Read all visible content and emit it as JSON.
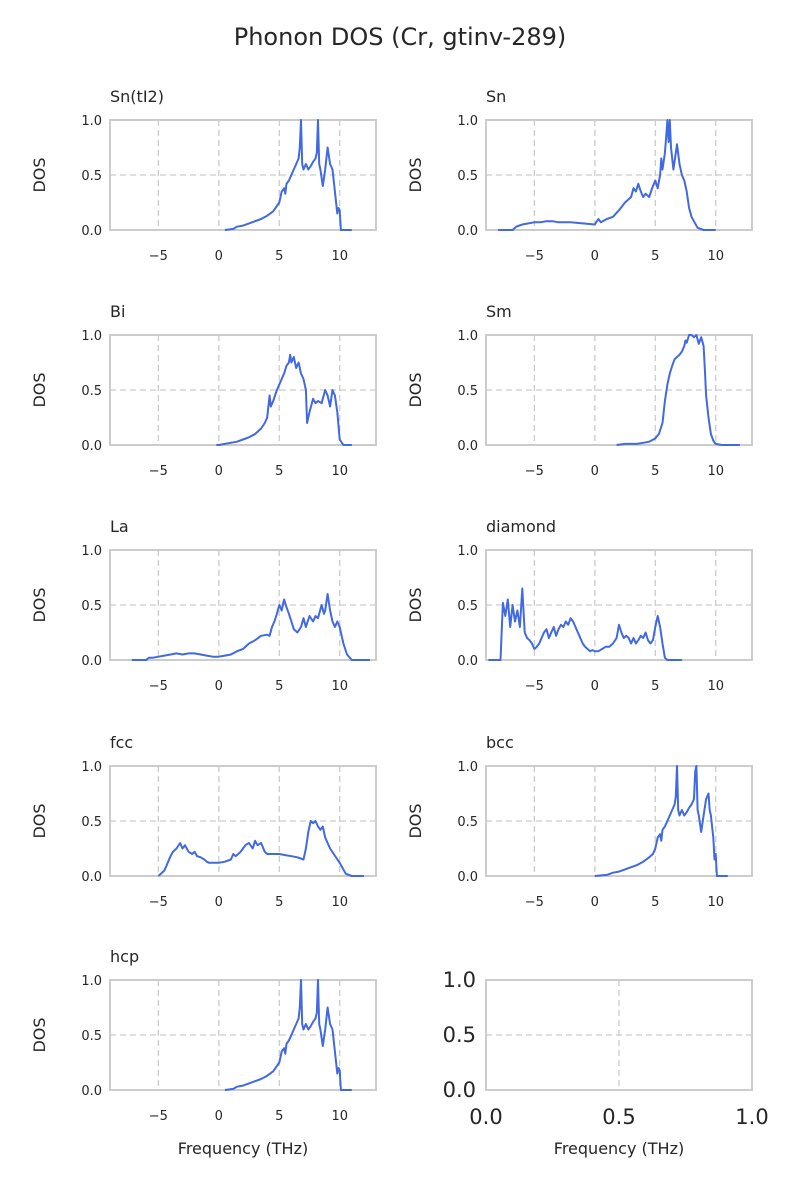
{
  "chart_data": {
    "title": "Phonon DOS (Cr, gtinv-289)",
    "color": "#4169e1",
    "panels": [
      {
        "type": "line",
        "title": "Sn(tI2)",
        "xlabel": "",
        "ylabel": "DOS",
        "xlim": [
          -9,
          13
        ],
        "ylim": [
          0,
          1
        ],
        "xticks": [
          -5,
          0,
          5,
          10
        ],
        "yticks": [
          0.0,
          0.5,
          1.0
        ],
        "grid": true,
        "x": [
          0.5,
          1.2,
          1.5,
          2.0,
          2.5,
          3.0,
          3.5,
          4.0,
          4.5,
          5.0,
          5.2,
          5.4,
          5.5,
          5.6,
          5.8,
          6.0,
          6.2,
          6.4,
          6.6,
          6.7,
          6.8,
          6.9,
          7.0,
          7.2,
          7.4,
          7.6,
          7.8,
          8.0,
          8.1,
          8.2,
          8.3,
          8.4,
          8.6,
          8.8,
          9.0,
          9.2,
          9.4,
          9.6,
          9.8,
          9.9,
          10.0,
          10.1,
          10.2,
          10.4,
          11.0
        ],
        "y": [
          0.0,
          0.01,
          0.03,
          0.04,
          0.06,
          0.08,
          0.1,
          0.13,
          0.17,
          0.25,
          0.35,
          0.38,
          0.33,
          0.42,
          0.45,
          0.5,
          0.55,
          0.6,
          0.65,
          0.75,
          1.0,
          0.6,
          0.55,
          0.6,
          0.55,
          0.58,
          0.62,
          0.65,
          0.7,
          1.0,
          0.6,
          0.55,
          0.4,
          0.55,
          0.75,
          0.6,
          0.55,
          0.35,
          0.15,
          0.2,
          0.18,
          0.0,
          0.0,
          0.0,
          0.0
        ]
      },
      {
        "type": "line",
        "title": "Sn",
        "xlabel": "",
        "ylabel": "DOS",
        "xlim": [
          -9,
          13
        ],
        "ylim": [
          0,
          1
        ],
        "xticks": [
          -5,
          0,
          5,
          10
        ],
        "yticks": [
          0.0,
          0.5,
          1.0
        ],
        "grid": true,
        "x": [
          -8.0,
          -6.8,
          -6.5,
          -6.0,
          -5.5,
          -5.0,
          -4.5,
          -4.0,
          -3.5,
          -3.0,
          -2.0,
          -1.0,
          0.0,
          0.3,
          0.5,
          1.0,
          1.5,
          2.0,
          2.5,
          3.0,
          3.2,
          3.4,
          3.6,
          3.8,
          4.0,
          4.2,
          4.5,
          4.8,
          5.0,
          5.2,
          5.4,
          5.5,
          5.6,
          5.8,
          5.9,
          6.0,
          6.1,
          6.2,
          6.3,
          6.5,
          6.7,
          6.8,
          7.0,
          7.2,
          7.4,
          7.6,
          7.8,
          8.0,
          8.5,
          9.0,
          10.0
        ],
        "y": [
          0.0,
          0.0,
          0.03,
          0.05,
          0.06,
          0.07,
          0.07,
          0.08,
          0.08,
          0.07,
          0.07,
          0.06,
          0.05,
          0.1,
          0.07,
          0.1,
          0.12,
          0.18,
          0.25,
          0.3,
          0.38,
          0.35,
          0.42,
          0.35,
          0.3,
          0.33,
          0.3,
          0.4,
          0.45,
          0.38,
          0.5,
          0.65,
          0.55,
          0.7,
          0.85,
          1.0,
          0.8,
          1.0,
          0.75,
          0.55,
          0.7,
          0.78,
          0.6,
          0.5,
          0.45,
          0.35,
          0.2,
          0.12,
          0.02,
          0.0,
          0.0
        ]
      },
      {
        "type": "line",
        "title": "Bi",
        "xlabel": "",
        "ylabel": "DOS",
        "xlim": [
          -9,
          13
        ],
        "ylim": [
          0,
          1
        ],
        "xticks": [
          -5,
          0,
          5,
          10
        ],
        "yticks": [
          0.0,
          0.5,
          1.0
        ],
        "grid": true,
        "x": [
          -0.2,
          0.0,
          0.5,
          1.0,
          1.5,
          2.0,
          2.5,
          3.0,
          3.5,
          3.8,
          4.0,
          4.2,
          4.3,
          4.5,
          4.8,
          5.0,
          5.2,
          5.4,
          5.6,
          5.8,
          5.9,
          6.0,
          6.2,
          6.4,
          6.6,
          6.8,
          7.0,
          7.2,
          7.3,
          7.5,
          7.8,
          8.0,
          8.2,
          8.5,
          8.8,
          9.0,
          9.2,
          9.4,
          9.6,
          9.8,
          10.0,
          10.3,
          11.0
        ],
        "y": [
          0.0,
          0.0,
          0.01,
          0.02,
          0.03,
          0.05,
          0.07,
          0.1,
          0.15,
          0.2,
          0.25,
          0.45,
          0.35,
          0.4,
          0.5,
          0.55,
          0.6,
          0.65,
          0.72,
          0.75,
          0.82,
          0.75,
          0.8,
          0.7,
          0.75,
          0.65,
          0.6,
          0.5,
          0.2,
          0.3,
          0.42,
          0.38,
          0.4,
          0.38,
          0.5,
          0.45,
          0.35,
          0.5,
          0.45,
          0.3,
          0.05,
          0.0,
          0.0
        ]
      },
      {
        "type": "line",
        "title": "Sm",
        "xlabel": "",
        "ylabel": "DOS",
        "xlim": [
          -9,
          13
        ],
        "ylim": [
          0,
          1
        ],
        "xticks": [
          -5,
          0,
          5,
          10
        ],
        "yticks": [
          0.0,
          0.5,
          1.0
        ],
        "grid": true,
        "x": [
          1.8,
          2.5,
          3.0,
          3.5,
          4.0,
          4.5,
          5.0,
          5.3,
          5.6,
          5.8,
          6.0,
          6.2,
          6.4,
          6.6,
          6.8,
          7.0,
          7.2,
          7.4,
          7.5,
          7.6,
          7.8,
          8.0,
          8.2,
          8.4,
          8.6,
          8.8,
          9.0,
          9.1,
          9.2,
          9.4,
          9.6,
          9.8,
          10.0,
          10.5,
          11.0,
          12.0
        ],
        "y": [
          0.0,
          0.01,
          0.01,
          0.01,
          0.02,
          0.03,
          0.06,
          0.1,
          0.2,
          0.4,
          0.55,
          0.65,
          0.72,
          0.78,
          0.8,
          0.82,
          0.85,
          0.9,
          0.95,
          0.93,
          1.0,
          1.0,
          0.98,
          1.0,
          0.92,
          0.98,
          0.9,
          0.7,
          0.45,
          0.25,
          0.1,
          0.04,
          0.01,
          0.0,
          0.0,
          0.0
        ]
      },
      {
        "type": "line",
        "title": "La",
        "xlabel": "",
        "ylabel": "DOS",
        "xlim": [
          -9,
          13
        ],
        "ylim": [
          0,
          1
        ],
        "xticks": [
          -5,
          0,
          5,
          10
        ],
        "yticks": [
          0.0,
          0.5,
          1.0
        ],
        "grid": true,
        "x": [
          -7.2,
          -6.0,
          -5.8,
          -5.5,
          -5.0,
          -4.5,
          -4.0,
          -3.5,
          -3.0,
          -2.5,
          -2.0,
          -1.5,
          -1.0,
          -0.5,
          0.0,
          0.5,
          1.0,
          1.5,
          2.0,
          2.5,
          3.0,
          3.5,
          4.0,
          4.2,
          4.4,
          4.6,
          4.8,
          5.0,
          5.2,
          5.4,
          5.6,
          5.8,
          6.0,
          6.2,
          6.5,
          6.8,
          7.0,
          7.2,
          7.5,
          7.8,
          8.0,
          8.2,
          8.5,
          8.7,
          8.8,
          9.0,
          9.2,
          9.4,
          9.6,
          9.8,
          10.0,
          10.3,
          10.6,
          11.0,
          12.0,
          12.5
        ],
        "y": [
          0.0,
          0.0,
          0.02,
          0.02,
          0.03,
          0.04,
          0.05,
          0.06,
          0.05,
          0.06,
          0.06,
          0.05,
          0.04,
          0.03,
          0.03,
          0.04,
          0.05,
          0.08,
          0.1,
          0.15,
          0.18,
          0.22,
          0.23,
          0.22,
          0.3,
          0.35,
          0.42,
          0.5,
          0.45,
          0.55,
          0.48,
          0.42,
          0.35,
          0.28,
          0.25,
          0.3,
          0.38,
          0.3,
          0.4,
          0.35,
          0.4,
          0.38,
          0.5,
          0.42,
          0.45,
          0.6,
          0.45,
          0.35,
          0.3,
          0.35,
          0.3,
          0.15,
          0.05,
          0.0,
          0.0,
          0.0
        ]
      },
      {
        "type": "line",
        "title": "diamond",
        "xlabel": "",
        "ylabel": "DOS",
        "xlim": [
          -9,
          13
        ],
        "ylim": [
          0,
          1
        ],
        "xticks": [
          -5,
          0,
          5,
          10
        ],
        "yticks": [
          0.0,
          0.5,
          1.0
        ],
        "grid": true,
        "x": [
          -8.8,
          -7.8,
          -7.6,
          -7.4,
          -7.2,
          -7.0,
          -6.8,
          -6.6,
          -6.4,
          -6.2,
          -6.0,
          -5.8,
          -5.6,
          -5.4,
          -5.2,
          -5.0,
          -4.8,
          -4.6,
          -4.4,
          -4.2,
          -4.0,
          -3.8,
          -3.6,
          -3.4,
          -3.2,
          -3.0,
          -2.8,
          -2.6,
          -2.4,
          -2.2,
          -2.0,
          -1.8,
          -1.6,
          -1.4,
          -1.2,
          -1.0,
          -0.8,
          -0.6,
          -0.4,
          -0.2,
          0.0,
          0.3,
          0.6,
          0.9,
          1.2,
          1.5,
          1.8,
          2.0,
          2.2,
          2.4,
          2.6,
          2.8,
          3.0,
          3.2,
          3.4,
          3.6,
          3.8,
          4.0,
          4.2,
          4.4,
          4.6,
          4.8,
          5.0,
          5.2,
          5.4,
          5.6,
          5.8,
          6.0,
          6.3,
          6.6,
          7.0,
          7.2
        ],
        "y": [
          0.0,
          0.0,
          0.52,
          0.4,
          0.55,
          0.3,
          0.5,
          0.35,
          0.45,
          0.3,
          0.65,
          0.25,
          0.2,
          0.18,
          0.15,
          0.1,
          0.12,
          0.15,
          0.2,
          0.25,
          0.28,
          0.2,
          0.25,
          0.3,
          0.22,
          0.28,
          0.32,
          0.3,
          0.35,
          0.32,
          0.38,
          0.35,
          0.3,
          0.25,
          0.2,
          0.15,
          0.12,
          0.1,
          0.08,
          0.09,
          0.08,
          0.08,
          0.1,
          0.12,
          0.12,
          0.15,
          0.2,
          0.32,
          0.25,
          0.2,
          0.22,
          0.2,
          0.15,
          0.2,
          0.15,
          0.18,
          0.22,
          0.2,
          0.25,
          0.18,
          0.15,
          0.18,
          0.3,
          0.4,
          0.3,
          0.15,
          0.02,
          0.0,
          0.0,
          0.0,
          0.0,
          0.0
        ]
      },
      {
        "type": "line",
        "title": "fcc",
        "xlabel": "",
        "ylabel": "DOS",
        "xlim": [
          -9,
          13
        ],
        "ylim": [
          0,
          1
        ],
        "xticks": [
          -5,
          0,
          5,
          10
        ],
        "yticks": [
          0.0,
          0.5,
          1.0
        ],
        "grid": true,
        "x": [
          -5.0,
          -4.5,
          -4.3,
          -4.0,
          -3.8,
          -3.5,
          -3.2,
          -3.0,
          -2.8,
          -2.5,
          -2.2,
          -2.0,
          -1.8,
          -1.5,
          -1.2,
          -1.0,
          -0.8,
          -0.5,
          0.0,
          0.5,
          1.0,
          1.2,
          1.4,
          1.6,
          1.8,
          2.0,
          2.2,
          2.5,
          2.8,
          3.0,
          3.2,
          3.5,
          3.8,
          4.0,
          4.2,
          4.5,
          5.0,
          5.5,
          6.0,
          6.5,
          7.0,
          7.2,
          7.4,
          7.6,
          7.8,
          8.0,
          8.2,
          8.4,
          8.6,
          8.8,
          9.0,
          9.2,
          9.5,
          10.0,
          10.5,
          11.0,
          12.0
        ],
        "y": [
          0.0,
          0.05,
          0.1,
          0.18,
          0.22,
          0.25,
          0.3,
          0.25,
          0.28,
          0.22,
          0.2,
          0.22,
          0.18,
          0.17,
          0.15,
          0.13,
          0.12,
          0.12,
          0.12,
          0.13,
          0.15,
          0.2,
          0.18,
          0.2,
          0.22,
          0.25,
          0.28,
          0.3,
          0.25,
          0.32,
          0.28,
          0.3,
          0.22,
          0.2,
          0.2,
          0.2,
          0.2,
          0.19,
          0.18,
          0.17,
          0.15,
          0.25,
          0.4,
          0.5,
          0.48,
          0.5,
          0.45,
          0.42,
          0.45,
          0.35,
          0.3,
          0.25,
          0.2,
          0.12,
          0.02,
          0.0,
          0.0
        ]
      },
      {
        "type": "line",
        "title": "bcc",
        "xlabel": "",
        "ylabel": "DOS",
        "xlim": [
          -9,
          13
        ],
        "ylim": [
          0,
          1
        ],
        "xticks": [
          -5,
          0,
          5,
          10
        ],
        "yticks": [
          0.0,
          0.5,
          1.0
        ],
        "grid": true,
        "x": [
          0.0,
          1.0,
          1.5,
          2.0,
          2.5,
          3.0,
          3.5,
          4.0,
          4.5,
          4.8,
          5.0,
          5.2,
          5.4,
          5.5,
          5.6,
          5.8,
          6.0,
          6.2,
          6.4,
          6.6,
          6.7,
          6.8,
          6.9,
          7.0,
          7.2,
          7.4,
          7.6,
          7.8,
          8.0,
          8.2,
          8.3,
          8.4,
          8.5,
          8.6,
          8.8,
          9.0,
          9.2,
          9.4,
          9.5,
          9.6,
          9.8,
          9.9,
          10.0,
          10.1,
          10.2,
          10.4,
          11.0
        ],
        "y": [
          0.0,
          0.01,
          0.03,
          0.04,
          0.06,
          0.08,
          0.1,
          0.13,
          0.17,
          0.2,
          0.25,
          0.35,
          0.38,
          0.32,
          0.42,
          0.45,
          0.5,
          0.55,
          0.6,
          0.65,
          0.72,
          1.0,
          0.6,
          0.55,
          0.6,
          0.55,
          0.58,
          0.62,
          0.65,
          0.7,
          0.95,
          1.0,
          0.6,
          0.55,
          0.4,
          0.55,
          0.7,
          0.75,
          0.6,
          0.55,
          0.35,
          0.15,
          0.2,
          0.0,
          0.0,
          0.0,
          0.0
        ]
      },
      {
        "type": "line",
        "title": "hcp",
        "xlabel": "Frequency (THz)",
        "ylabel": "DOS",
        "xlim": [
          -9,
          13
        ],
        "ylim": [
          0,
          1
        ],
        "xticks": [
          -5,
          0,
          5,
          10
        ],
        "yticks": [
          0.0,
          0.5,
          1.0
        ],
        "grid": true,
        "x": [
          0.5,
          1.2,
          1.5,
          2.0,
          2.5,
          3.0,
          3.5,
          4.0,
          4.5,
          5.0,
          5.2,
          5.4,
          5.5,
          5.6,
          5.8,
          6.0,
          6.2,
          6.4,
          6.6,
          6.7,
          6.8,
          6.9,
          7.0,
          7.2,
          7.4,
          7.6,
          7.8,
          8.0,
          8.1,
          8.2,
          8.3,
          8.4,
          8.6,
          8.8,
          9.0,
          9.2,
          9.4,
          9.6,
          9.8,
          9.9,
          10.0,
          10.1,
          10.2,
          10.4,
          11.0
        ],
        "y": [
          0.0,
          0.01,
          0.03,
          0.04,
          0.06,
          0.08,
          0.1,
          0.13,
          0.17,
          0.25,
          0.35,
          0.38,
          0.33,
          0.42,
          0.45,
          0.5,
          0.55,
          0.6,
          0.65,
          0.75,
          1.0,
          0.6,
          0.55,
          0.6,
          0.55,
          0.58,
          0.62,
          0.65,
          0.7,
          1.0,
          0.6,
          0.55,
          0.4,
          0.55,
          0.75,
          0.6,
          0.55,
          0.35,
          0.15,
          0.2,
          0.18,
          0.0,
          0.0,
          0.0,
          0.0
        ]
      },
      {
        "type": "line",
        "title": "",
        "xlabel": "Frequency (THz)",
        "ylabel": "",
        "xlim": [
          0,
          1
        ],
        "ylim": [
          0,
          1
        ],
        "xticks": [
          0.0,
          0.5,
          1.0
        ],
        "yticks": [
          0.0,
          0.5,
          1.0
        ],
        "xtick_labels": [
          "0.0",
          "0.5",
          "1.0"
        ],
        "ytick_labels": [
          "0.0",
          "0.5",
          "1.0"
        ],
        "grid": true,
        "empty": true,
        "x": [],
        "y": []
      }
    ]
  }
}
